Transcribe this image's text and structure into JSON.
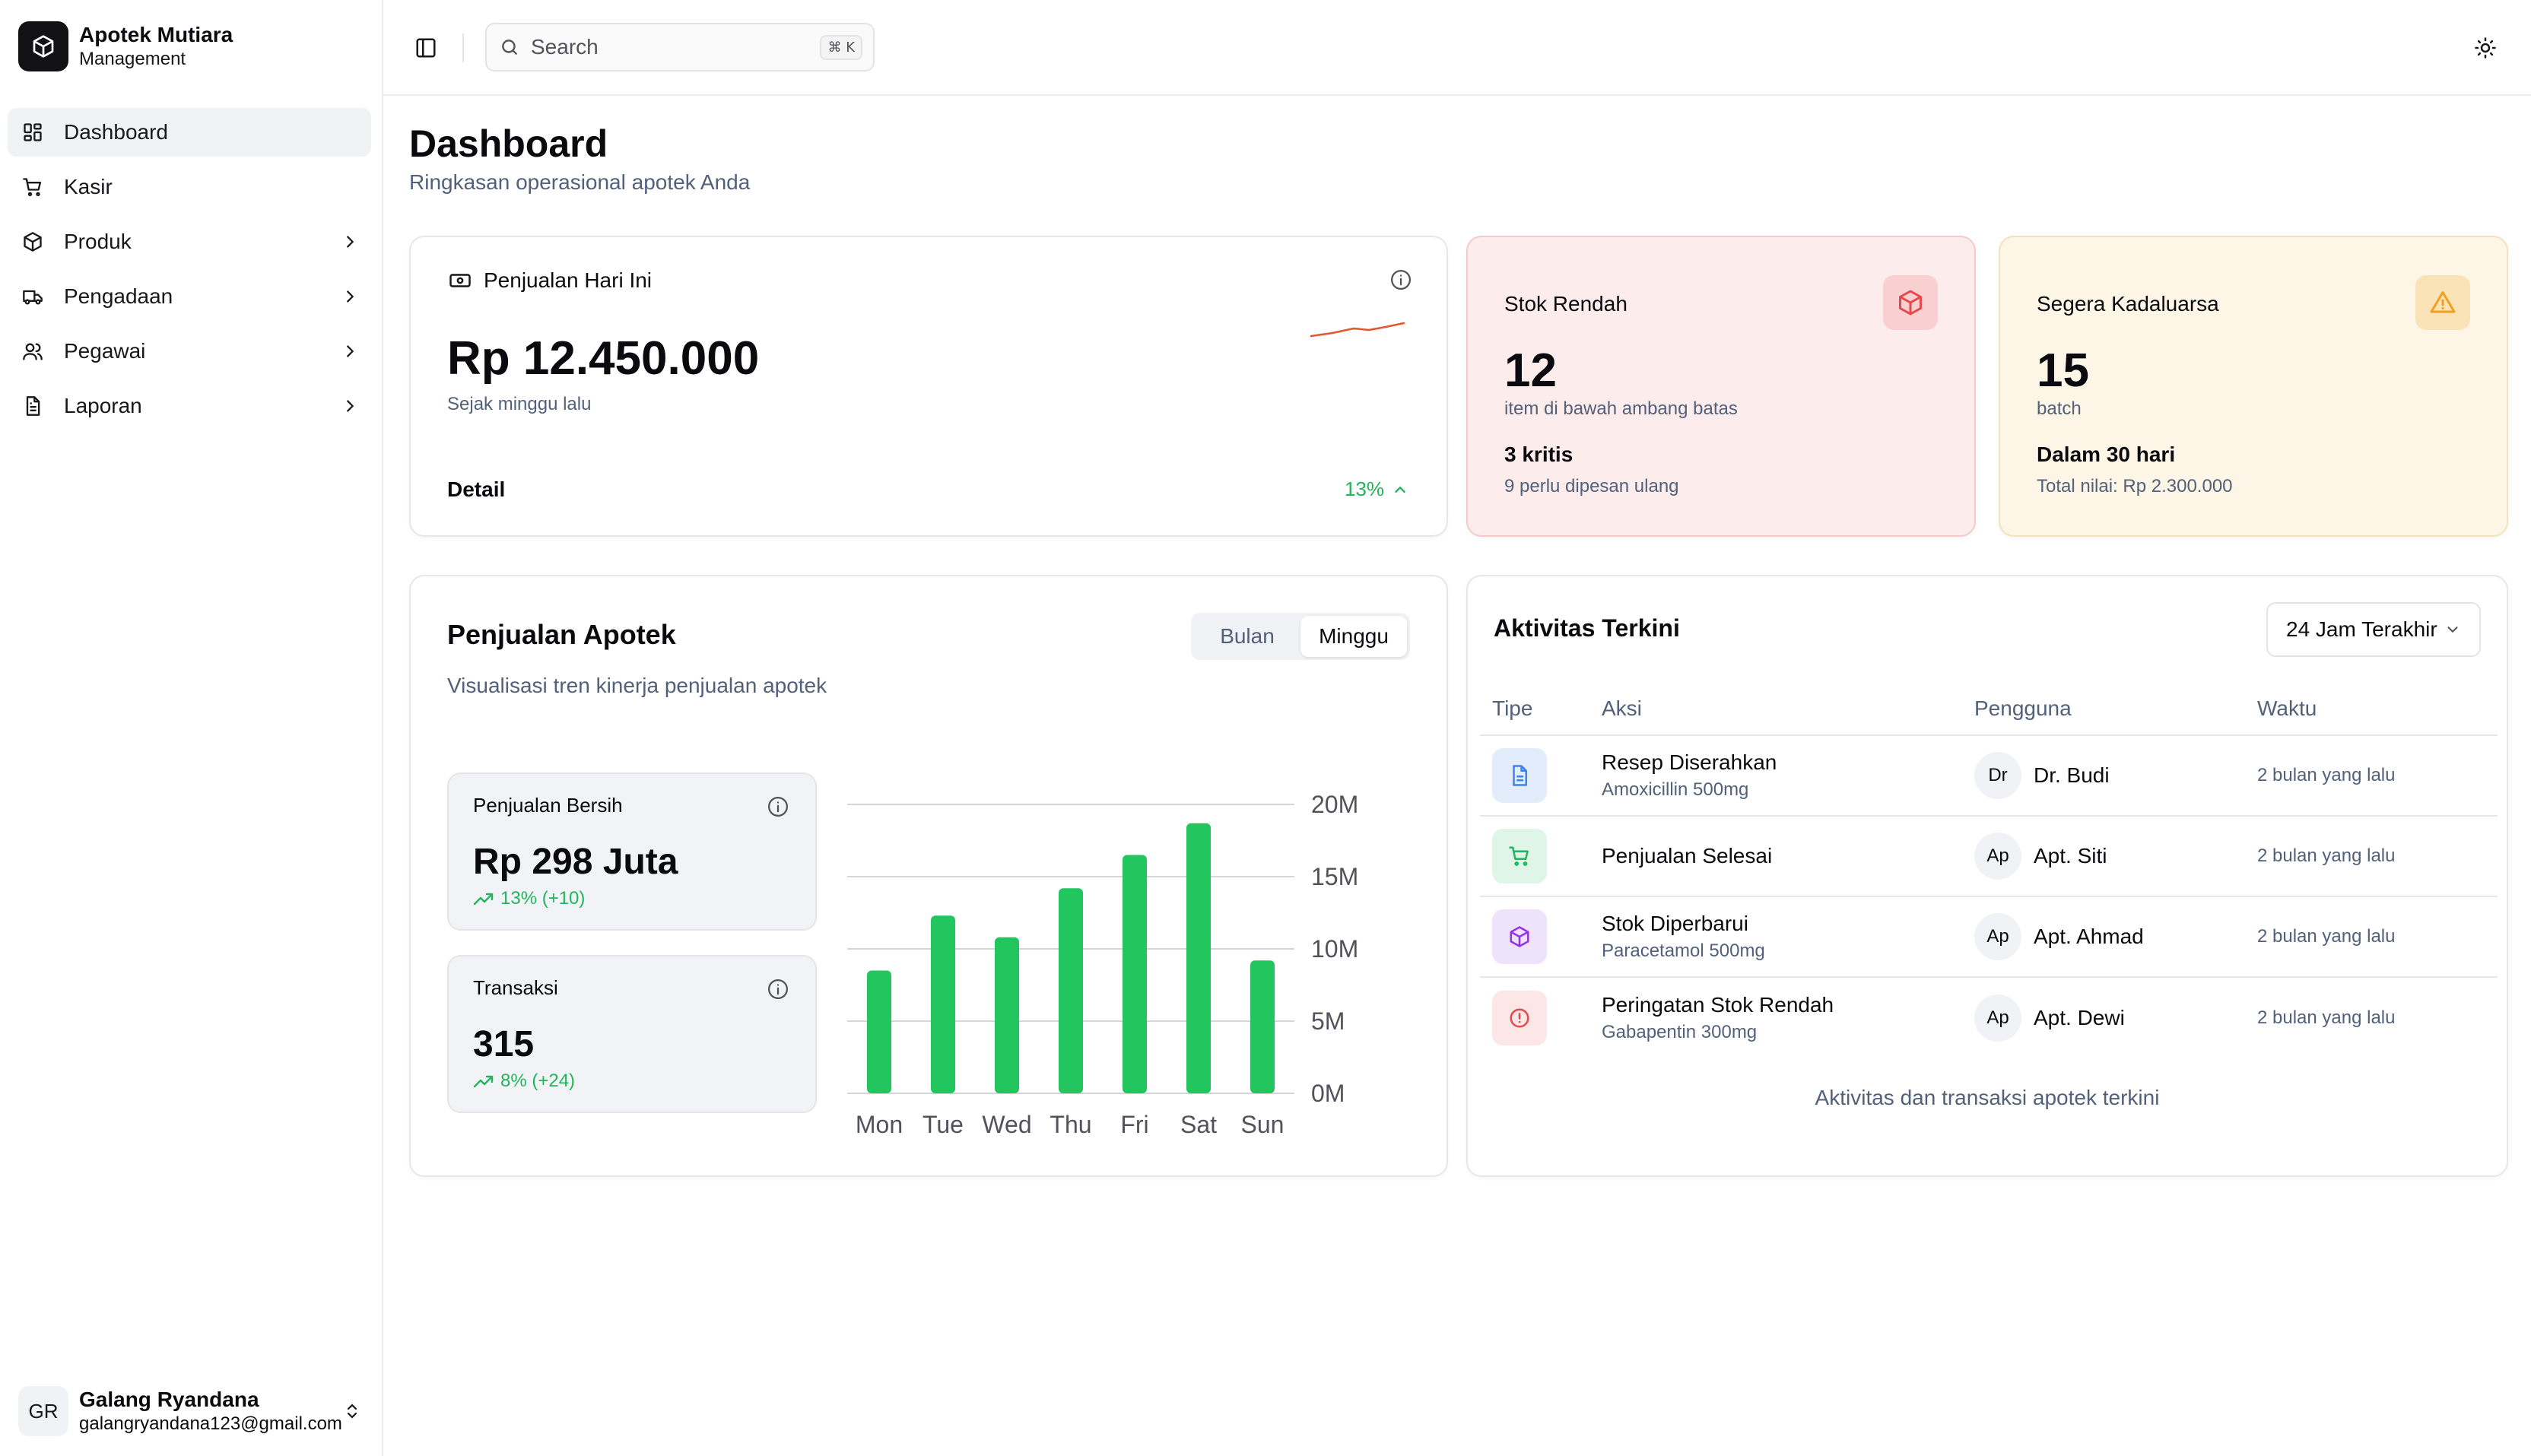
{
  "brand": {
    "name": "Apotek Mutiara",
    "sub": "Management"
  },
  "nav": [
    {
      "label": "Dashboard",
      "icon": "dashboard-icon",
      "active": true
    },
    {
      "label": "Kasir",
      "icon": "cart-icon"
    },
    {
      "label": "Produk",
      "icon": "package-icon",
      "chevron": true
    },
    {
      "label": "Pengadaan",
      "icon": "truck-icon",
      "chevron": true
    },
    {
      "label": "Pegawai",
      "icon": "users-icon",
      "chevron": true
    },
    {
      "label": "Laporan",
      "icon": "file-text-icon",
      "chevron": true
    }
  ],
  "user": {
    "initials": "GR",
    "name": "Galang Ryandana",
    "email": "galangryandana123@gmail.com"
  },
  "topbar": {
    "search_placeholder": "Search",
    "search_shortcut": "⌘ K"
  },
  "page": {
    "title": "Dashboard",
    "subtitle": "Ringkasan operasional apotek Anda"
  },
  "sales_today": {
    "title": "Penjualan Hari Ini",
    "amount": "Rp 12.450.000",
    "since": "Sejak minggu lalu",
    "detail_label": "Detail",
    "change": "13%",
    "trend_color": "#e4572e"
  },
  "low_stock": {
    "title": "Stok Rendah",
    "value": "12",
    "desc": "item di bawah ambang batas",
    "strong": "3 kritis",
    "small": "9 perlu dipesan ulang",
    "accent": "#e5484d"
  },
  "expiring": {
    "title": "Segera Kadaluarsa",
    "value": "15",
    "desc": "batch",
    "strong": "Dalam 30 hari",
    "small": "Total nilai: Rp 2.300.000",
    "accent": "#f0a020"
  },
  "sales_chart": {
    "title": "Penjualan Apotek",
    "subtitle": "Visualisasi tren kinerja penjualan apotek",
    "toggle": [
      "Bulan",
      "Minggu"
    ],
    "toggle_active": "Minggu",
    "net": {
      "label": "Penjualan Bersih",
      "value": "Rp 298 Juta",
      "trend": "13% (+10)"
    },
    "transactions": {
      "label": "Transaksi",
      "value": "315",
      "trend": "8% (+24)"
    }
  },
  "chart_data": {
    "type": "bar",
    "categories": [
      "Mon",
      "Tue",
      "Wed",
      "Thu",
      "Fri",
      "Sat",
      "Sun"
    ],
    "values": [
      8.5,
      12.3,
      10.8,
      14.2,
      16.5,
      18.7,
      9.2
    ],
    "ylim": [
      0,
      20
    ],
    "yticks": [
      "0M",
      "5M",
      "10M",
      "15M",
      "20M"
    ],
    "grid": true,
    "color": "#22c55e"
  },
  "activity": {
    "title": "Aktivitas Terkini",
    "range": "24 Jam Terakhir",
    "columns": [
      "Tipe",
      "Aksi",
      "Pengguna",
      "Waktu"
    ],
    "rows": [
      {
        "icon": "document-icon",
        "tone": "blue",
        "action": "Resep Diserahkan",
        "detail": "Amoxicillin 500mg",
        "avatar": "Dr",
        "user": "Dr. Budi",
        "time": "2 bulan yang lalu"
      },
      {
        "icon": "cart-icon",
        "tone": "green",
        "action": "Penjualan Selesai",
        "detail": "",
        "avatar": "Ap",
        "user": "Apt. Siti",
        "time": "2 bulan yang lalu"
      },
      {
        "icon": "package-icon",
        "tone": "purple",
        "action": "Stok Diperbarui",
        "detail": "Paracetamol 500mg",
        "avatar": "Ap",
        "user": "Apt. Ahmad",
        "time": "2 bulan yang lalu"
      },
      {
        "icon": "alert-circle-icon",
        "tone": "red",
        "action": "Peringatan Stok Rendah",
        "detail": "Gabapentin 300mg",
        "avatar": "Ap",
        "user": "Apt. Dewi",
        "time": "2 bulan yang lalu"
      }
    ],
    "footer": "Aktivitas dan transaksi apotek terkini"
  }
}
